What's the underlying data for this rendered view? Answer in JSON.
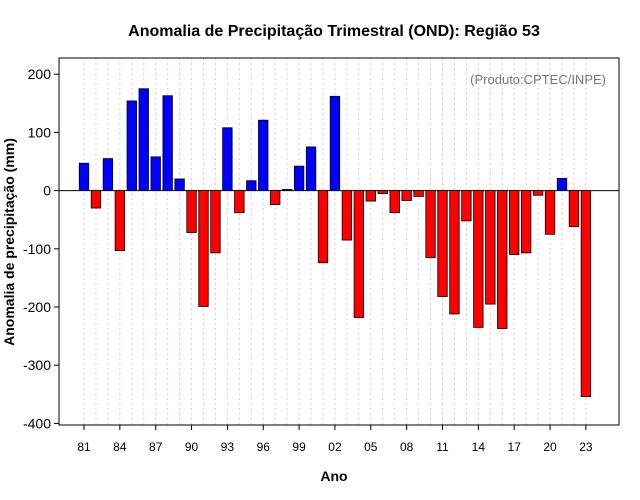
{
  "chart_data": {
    "type": "bar",
    "title": "Anomalia de Precipitação Trimestral (OND): Região 53",
    "credit": "(Produto:CPTEC/INPE)",
    "xlabel": "Ano",
    "ylabel": "Anomalia de precipitação (mm)",
    "ylim": [
      -400,
      230
    ],
    "yticks": [
      200,
      100,
      0,
      -100,
      -200,
      -300,
      -400
    ],
    "xtick_labels": [
      "81",
      "84",
      "87",
      "90",
      "93",
      "96",
      "99",
      "02",
      "05",
      "08",
      "11",
      "14",
      "17",
      "20",
      "23"
    ],
    "positive_color": "#0000ff",
    "negative_color": "#ff0000",
    "categories": [
      "1981",
      "1982",
      "1983",
      "1984",
      "1985",
      "1986",
      "1987",
      "1988",
      "1989",
      "1990",
      "1991",
      "1992",
      "1993",
      "1994",
      "1995",
      "1996",
      "1997",
      "1998",
      "1999",
      "2000",
      "2001",
      "2002",
      "2003",
      "2004",
      "2005",
      "2006",
      "2007",
      "2008",
      "2009",
      "2010",
      "2011",
      "2012",
      "2013",
      "2014",
      "2015",
      "2016",
      "2017",
      "2018",
      "2019",
      "2020",
      "2021",
      "2022",
      "2023"
    ],
    "values": [
      47,
      -30,
      55,
      -103,
      154,
      175,
      58,
      163,
      20,
      -72,
      -199,
      -107,
      108,
      -38,
      17,
      121,
      -24,
      2,
      42,
      75,
      -124,
      162,
      -85,
      -218,
      -18,
      -5,
      -38,
      -17,
      -10,
      -115,
      -182,
      -212,
      -52,
      -235,
      -195,
      -237,
      -110,
      -107,
      -8,
      -75,
      21,
      -62,
      -354
    ]
  }
}
